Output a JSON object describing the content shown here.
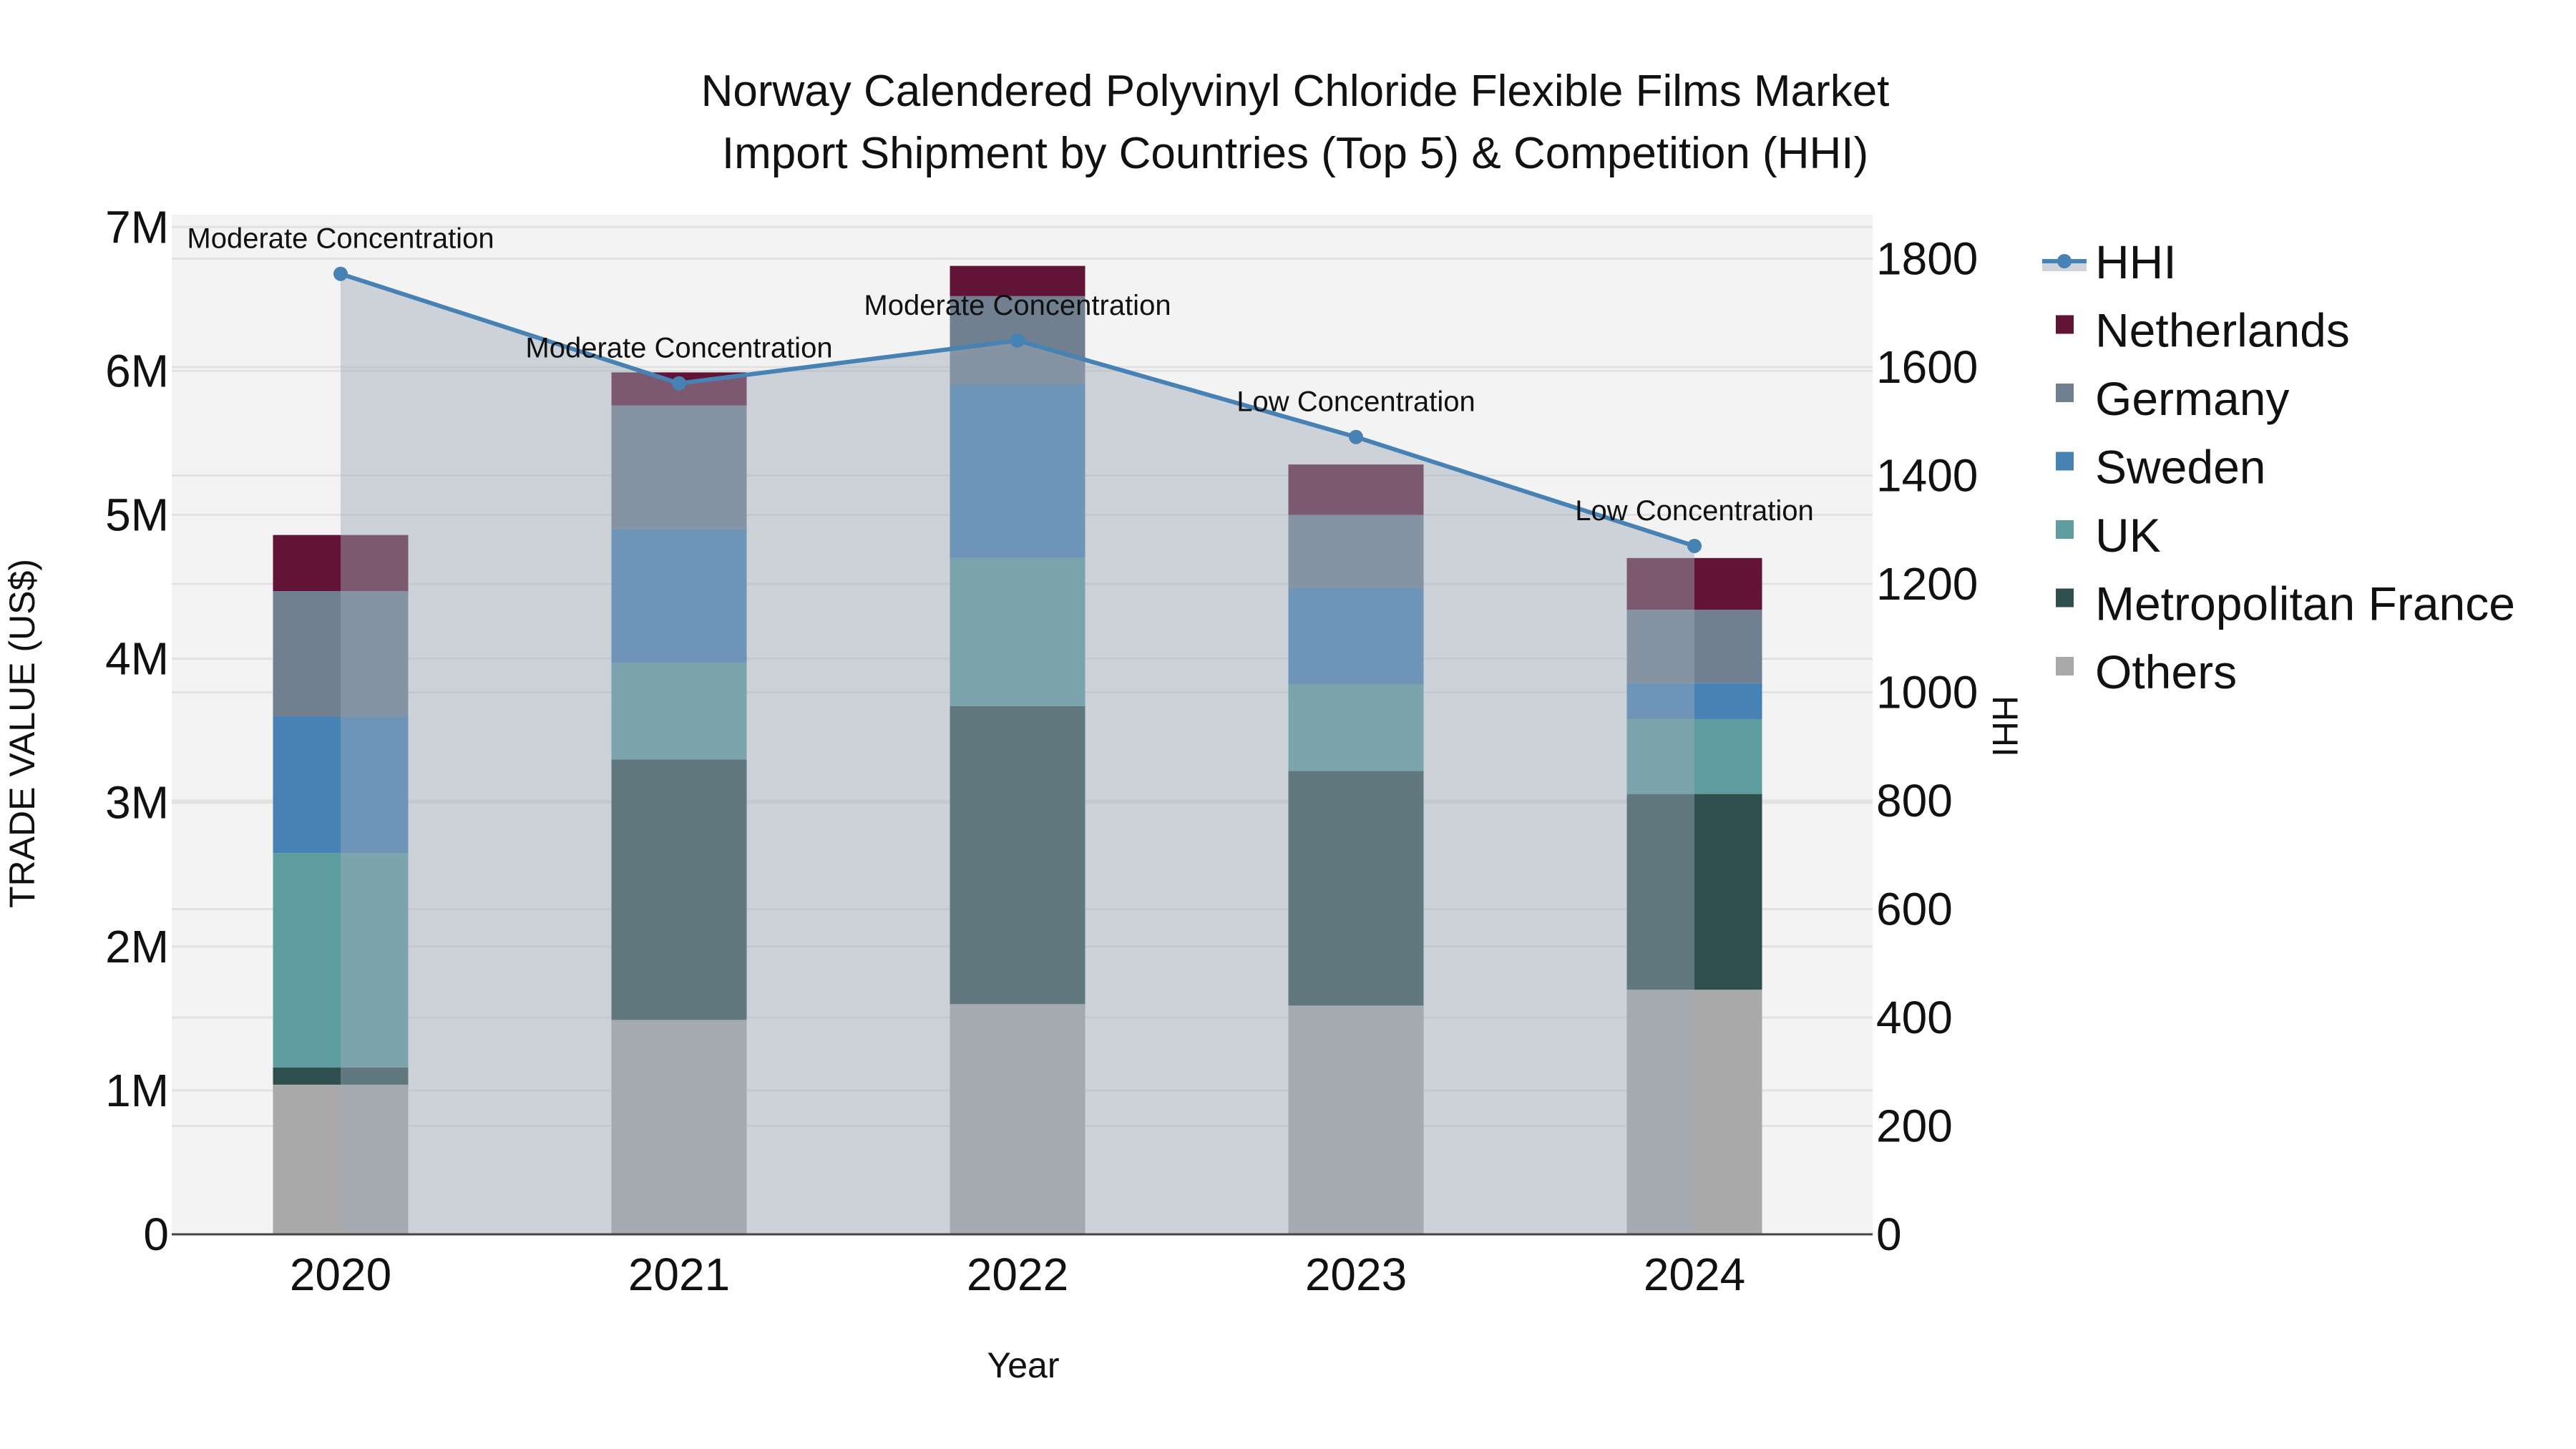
{
  "title": {
    "line1": "Norway Calendered Polyvinyl Chloride Flexible Films Market",
    "line2": "Import Shipment by Countries (Top 5) & Competition (HHI)"
  },
  "axes": {
    "x_title": "Year",
    "y_left_title": "TRADE VALUE (US$)",
    "y_right_title": "HHI",
    "y_left_ticks": [
      "0",
      "1M",
      "2M",
      "3M",
      "4M",
      "5M",
      "6M",
      "7M"
    ],
    "y_right_ticks": [
      "0",
      "200",
      "400",
      "600",
      "800",
      "1000",
      "1200",
      "1400",
      "1600",
      "1800"
    ]
  },
  "legend": [
    {
      "label": "HHI",
      "type": "line",
      "color": "#4682B4"
    },
    {
      "label": "Netherlands",
      "type": "bar",
      "color": "#621436"
    },
    {
      "label": "Germany",
      "type": "bar",
      "color": "#708090"
    },
    {
      "label": "Sweden",
      "type": "bar",
      "color": "#4682B4"
    },
    {
      "label": "UK",
      "type": "bar",
      "color": "#5F9EA0"
    },
    {
      "label": "Metropolitan France",
      "type": "bar",
      "color": "#2F4F4F"
    },
    {
      "label": "Others",
      "type": "bar",
      "color": "#A9A9A9"
    }
  ],
  "chart_data": {
    "type": "bar",
    "subtype": "stacked bar with line overlay (dual axis)",
    "title": "Norway Calendered Polyvinyl Chloride Flexible Films Market Import Shipment by Countries (Top 5) & Competition (HHI)",
    "xlabel": "Year",
    "ylabel": "TRADE VALUE (US$)",
    "y2label": "HHI",
    "categories": [
      "2020",
      "2021",
      "2022",
      "2023",
      "2024"
    ],
    "ylim": [
      0,
      7000000
    ],
    "y2lim": [
      0,
      1800
    ],
    "grid": true,
    "legend_position": "right",
    "series": [
      {
        "name": "Others",
        "color": "#A9A9A9",
        "values": [
          1040000,
          1490000,
          1600000,
          1590000,
          1700000
        ]
      },
      {
        "name": "Metropolitan France",
        "color": "#2F4F4F",
        "values": [
          120000,
          1810000,
          2070000,
          1630000,
          1360000
        ]
      },
      {
        "name": "UK",
        "color": "#5F9EA0",
        "values": [
          1490000,
          670000,
          1030000,
          600000,
          520000
        ]
      },
      {
        "name": "Sweden",
        "color": "#4682B4",
        "values": [
          950000,
          930000,
          1210000,
          670000,
          250000
        ]
      },
      {
        "name": "Germany",
        "color": "#708090",
        "values": [
          870000,
          860000,
          610000,
          510000,
          510000
        ]
      },
      {
        "name": "Netherlands",
        "color": "#621436",
        "values": [
          390000,
          230000,
          210000,
          350000,
          360000
        ]
      }
    ],
    "line_series": {
      "name": "HHI",
      "axis": "right",
      "color": "#4682B4",
      "fill": "tozeroy",
      "values": [
        1772,
        1570,
        1649,
        1471,
        1270
      ],
      "annotations": [
        "Moderate Concentration",
        "Moderate Concentration",
        "Moderate Concentration",
        "Low Concentration",
        "Low Concentration"
      ]
    }
  }
}
